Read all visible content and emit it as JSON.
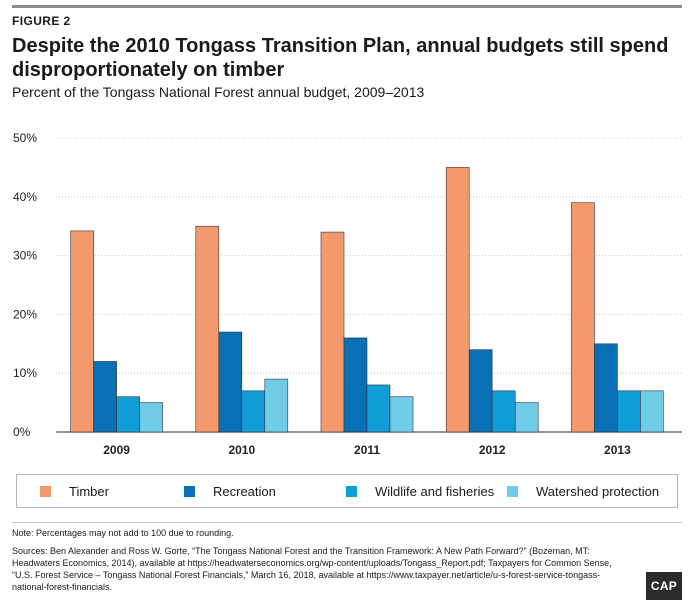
{
  "figure_label": "FIGURE 2",
  "chart_data": {
    "type": "bar",
    "title": "Despite the 2010 Tongass Transition Plan, annual budgets still spend disproportionately on timber",
    "subtitle": "Percent of the Tongass National Forest annual budget, 2009–2013",
    "categories": [
      "2009",
      "2010",
      "2011",
      "2012",
      "2013"
    ],
    "series": [
      {
        "name": "Timber",
        "color": "#f4996e",
        "values": [
          34.2,
          35,
          34,
          45,
          39
        ]
      },
      {
        "name": "Recreation",
        "color": "#0a70b5",
        "values": [
          12,
          17,
          16,
          14,
          15
        ]
      },
      {
        "name": "Wildlife and fisheries",
        "color": "#119dd8",
        "values": [
          6,
          7,
          8,
          7,
          7
        ]
      },
      {
        "name": "Watershed protection",
        "color": "#6fcbe6",
        "values": [
          5,
          9,
          6,
          5,
          7
        ]
      }
    ],
    "yticks": [
      "0%",
      "10%",
      "20%",
      "30%",
      "40%",
      "50%"
    ],
    "ylim": [
      0,
      50
    ],
    "xlabel": "",
    "ylabel": "",
    "grid": true,
    "legend": "bottom"
  },
  "note": "Note: Percentages may not add to 100 due to rounding.",
  "sources": "Sources: Ben Alexander and Ross W. Gorte, “The Tongass National Forest and the Transition Framework: A New Path Forward?” (Bozeman, MT: Headwaters Economics, 2014), available at https://headwaterseconomics.org/wp-content/uploads/Tongass_Report.pdf; Taxpayers for Common Sense, “U.S. Forest Service – Tongass National Forest Financials,” March 16, 2018, available at https://www.taxpayer.net/article/u-s-forest-service-tongass-national-forest-financials.",
  "logo_text": "CAP"
}
